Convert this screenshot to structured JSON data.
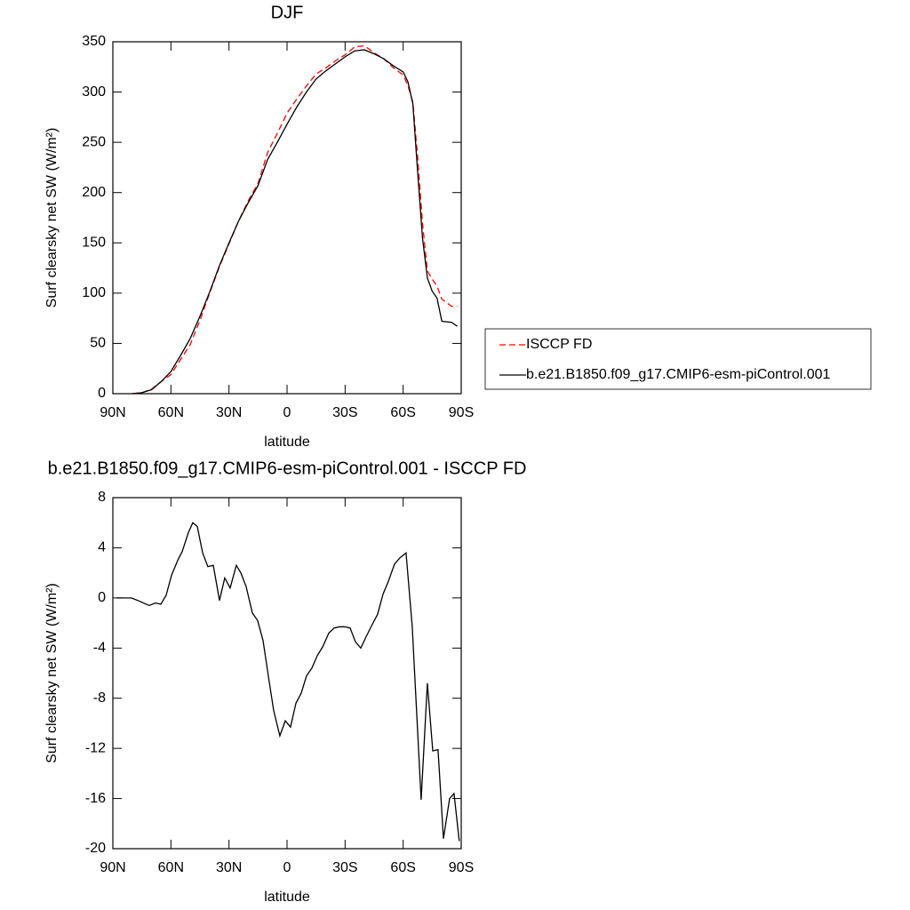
{
  "chart_data": [
    {
      "type": "line",
      "title": "DJF",
      "xlabel": "latitude",
      "ylabel": "Surf clearsky net SW (W/m²)",
      "x": [
        80,
        75,
        70,
        65,
        60,
        55,
        50,
        45,
        40,
        35,
        30,
        25,
        20,
        15,
        10,
        5,
        0,
        -5,
        -10,
        -15,
        -20,
        -25,
        -30,
        -35,
        -40,
        -45,
        -50,
        -55,
        -60,
        -62.5,
        -65,
        -67.5,
        -70,
        -72.5,
        -75,
        -77.5,
        -80,
        -85,
        -88
      ],
      "series": [
        {
          "name": "ISCCP FD",
          "color": "#ff0000",
          "dashed": true,
          "values": [
            0,
            1,
            4.5,
            12,
            19,
            34,
            49,
            73,
            100,
            126,
            149,
            172,
            192,
            209,
            240,
            259,
            279,
            293,
            306,
            318,
            324,
            331,
            337,
            345,
            346,
            339,
            333,
            324,
            317,
            306,
            290,
            235,
            170,
            122,
            114,
            107,
            94,
            87,
            87
          ]
        },
        {
          "name": "b.e21.B1850.f09_g17.CMIP6-esm-piControl.001",
          "color": "#000000",
          "dashed": false,
          "values": [
            0,
            1,
            4,
            12,
            22,
            38,
            55,
            77,
            101,
            127,
            150,
            172,
            190,
            207,
            233,
            250,
            268,
            285,
            300,
            313,
            321,
            328,
            335,
            341,
            342,
            338,
            333,
            326,
            320,
            310,
            288,
            220,
            155,
            115,
            102,
            95,
            72,
            71,
            67
          ]
        }
      ],
      "xlim": [
        90,
        -90
      ],
      "xticks": [
        {
          "value": 90,
          "label": "90N"
        },
        {
          "value": 60,
          "label": "60N"
        },
        {
          "value": 30,
          "label": "30N"
        },
        0,
        {
          "value": -30,
          "label": "30S"
        },
        {
          "value": -60,
          "label": "60S"
        },
        {
          "value": -90,
          "label": "90S"
        }
      ],
      "ylim": [
        0,
        350
      ],
      "yticks": [
        0,
        50,
        100,
        150,
        200,
        250,
        300,
        350
      ],
      "legend": "right"
    },
    {
      "type": "line",
      "title": "b.e21.B1850.f09_g17.CMIP6-esm-piControl.001 - ISCCP FD",
      "xlabel": "latitude",
      "ylabel": "Surf clearsky net SW (W/m²)",
      "x": [
        88.2,
        80.4,
        77.1,
        71.2,
        68,
        65.2,
        62.5,
        59.7,
        56.5,
        54.2,
        51,
        48.7,
        46.4,
        43.6,
        40.9,
        38.1,
        34.9,
        32.2,
        29.4,
        26.2,
        23.9,
        21.1,
        17.9,
        15.2,
        12.4,
        9.7,
        6.9,
        3.7,
        0.9,
        -1.8,
        -4.6,
        -7.3,
        -10.1,
        -12.8,
        -15.6,
        -18.4,
        -21.6,
        -24.3,
        -27.1,
        -29.8,
        -32.6,
        -35.3,
        -38.1,
        -40.8,
        -44.1,
        -46.8,
        -49.6,
        -52.3,
        -55.5,
        -58.3,
        -61.5,
        -64.7,
        -69.3,
        -72.5,
        -75.3,
        -78,
        -80.8,
        -84,
        -86.3,
        -89
      ],
      "series": [
        {
          "name": "b.e21.B1850.f09_g17.CMIP6-esm-piControl.001 - ISCCP FD",
          "color": "#000000",
          "dashed": false,
          "values": [
            0,
            0,
            -0.2,
            -0.6,
            -0.4,
            -0.5,
            0.2,
            1.8,
            3.0,
            3.7,
            5.2,
            6.0,
            5.7,
            3.6,
            2.5,
            2.6,
            -0.2,
            1.6,
            0.8,
            2.6,
            2.0,
            0.9,
            -1.2,
            -1.8,
            -3.4,
            -6.2,
            -9.0,
            -11.0,
            -9.8,
            -10.3,
            -8.4,
            -7.6,
            -6.2,
            -5.6,
            -4.6,
            -3.9,
            -2.8,
            -2.4,
            -2.3,
            -2.3,
            -2.4,
            -3.5,
            -4.0,
            -3.1,
            -2.1,
            -1.3,
            0.3,
            1.3,
            2.7,
            3.2,
            3.6,
            -2.3,
            -16.1,
            -6.8,
            -12.2,
            -12.1,
            -19.2,
            -16.0,
            -15.6,
            -19.4
          ]
        }
      ],
      "xlim": [
        90,
        -90
      ],
      "xticks": [
        {
          "value": 90,
          "label": "90N"
        },
        {
          "value": 60,
          "label": "60N"
        },
        {
          "value": 30,
          "label": "30N"
        },
        0,
        {
          "value": -30,
          "label": "30S"
        },
        {
          "value": -60,
          "label": "60S"
        },
        {
          "value": -90,
          "label": "90S"
        }
      ],
      "ylim": [
        -20,
        8
      ],
      "yticks": [
        -20,
        -16,
        -12,
        -8,
        -4,
        0,
        4,
        8
      ]
    }
  ]
}
